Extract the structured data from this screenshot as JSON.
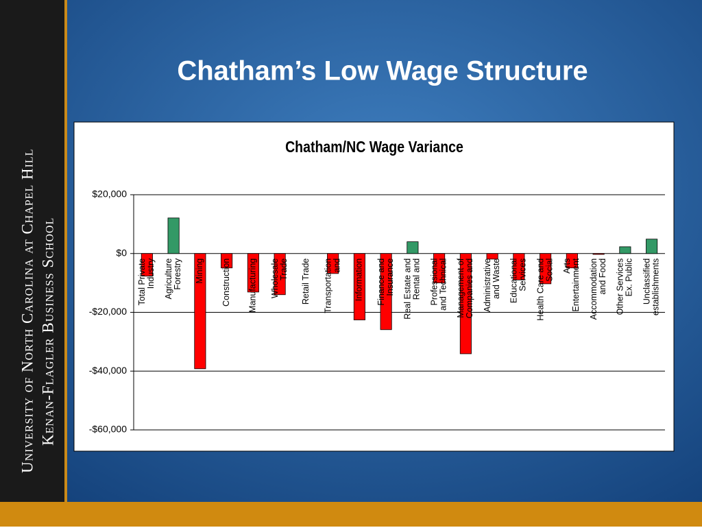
{
  "sidebar": {
    "lines": [
      "University of North Carolina at Chapel Hill",
      "Kenan-Flagler Business School"
    ]
  },
  "title": "Chatham’s Low Wage Structure",
  "chart_data": {
    "type": "bar",
    "title": "Chatham/NC Wage Variance",
    "categories": [
      [
        "Total Private",
        "Industry"
      ],
      [
        "Agriculture",
        "Forestry"
      ],
      [
        "Mining"
      ],
      [
        "Construction"
      ],
      [
        "Manufacturing"
      ],
      [
        "Wholesale",
        "Trade"
      ],
      [
        "Retail Trade"
      ],
      [
        "Transportation",
        "and"
      ],
      [
        "Information"
      ],
      [
        "Finance and",
        "Insurance"
      ],
      [
        "Real Estate and",
        "Rental and"
      ],
      [
        "Professional",
        "and Technical"
      ],
      [
        "Management of",
        "Companies and"
      ],
      [
        "Administrative",
        "and Waste"
      ],
      [
        "Educational",
        "Services"
      ],
      [
        "Health Care and",
        "Social"
      ],
      [
        "Arts",
        "Entertainment"
      ],
      [
        "Accommodation",
        "and Food"
      ],
      [
        "Other Services",
        "Ex. Public"
      ],
      [
        "Unclassified",
        "establishments"
      ]
    ],
    "values": [
      -7700,
      12100,
      -39200,
      -4900,
      -13100,
      -14000,
      0,
      -6800,
      -22600,
      -25900,
      4000,
      -10000,
      -34100,
      -1900,
      -9000,
      -10300,
      -4900,
      -300,
      2300,
      4900
    ],
    "colors": {
      "positive": "#339966",
      "negative": "#ff0000"
    },
    "ylim": [
      -60000,
      20000
    ],
    "yticks": [
      {
        "value": -60000,
        "label": "-$60,000"
      },
      {
        "value": -40000,
        "label": "-$40,000"
      },
      {
        "value": -20000,
        "label": "-$20,000"
      },
      {
        "value": 0,
        "label": "$0"
      },
      {
        "value": 20000,
        "label": "$20,000"
      }
    ],
    "grid": true
  }
}
